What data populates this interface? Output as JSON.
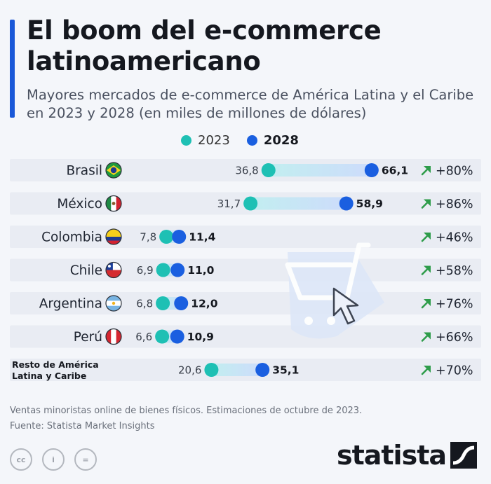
{
  "title": "El boom del e-commerce latinoamericano",
  "subtitle": "Mayores mercados de e-commerce de América Latina y el Caribe en 2023 y 2028 (en miles de millones de dólares)",
  "colors": {
    "accent": "#1a58d8",
    "series_2023": "#1ec0b4",
    "series_2028": "#1a5fe0",
    "arrow": "#2e9c4a"
  },
  "legend": {
    "label_2023": "2023",
    "label_2028": "2028"
  },
  "chart_data": {
    "type": "dumbbell",
    "categories": [
      "Brasil",
      "México",
      "Colombia",
      "Chile",
      "Argentina",
      "Perú",
      "Resto de América Latina y Caribe"
    ],
    "category_lines": [
      [
        "Brasil"
      ],
      [
        "México"
      ],
      [
        "Colombia"
      ],
      [
        "Chile"
      ],
      [
        "Argentina"
      ],
      [
        "Perú"
      ],
      [
        "Resto de América",
        "Latina y Caribe"
      ]
    ],
    "flags": [
      "brazil",
      "mexico",
      "colombia",
      "chile",
      "argentina",
      "peru",
      null
    ],
    "series": [
      {
        "name": "2023",
        "values": [
          36.8,
          31.7,
          7.8,
          6.9,
          6.8,
          6.6,
          20.6
        ]
      },
      {
        "name": "2028",
        "values": [
          66.1,
          58.9,
          11.4,
          11.0,
          12.0,
          10.9,
          35.1
        ]
      }
    ],
    "growth_labels": [
      "+80%",
      "+86%",
      "+46%",
      "+58%",
      "+76%",
      "+66%",
      "+70%"
    ],
    "value_labels_2023": [
      "36,8",
      "31,7",
      "7,8",
      "6,9",
      "6,8",
      "6,6",
      "20,6"
    ],
    "value_labels_2028": [
      "66,1",
      "58,9",
      "11,4",
      "11,0",
      "12,0",
      "10,9",
      "35,1"
    ]
  },
  "footnote": {
    "note": "Ventas minoristas online de bienes físicos. Estimaciones de octubre de 2023.",
    "source": "Fuente: Statista Market Insights"
  },
  "license_icons": [
    "cc-icon",
    "person-icon",
    "equals-icon"
  ],
  "license_glyphs": [
    "cc",
    "i",
    "="
  ],
  "brand": {
    "name": "statista"
  }
}
